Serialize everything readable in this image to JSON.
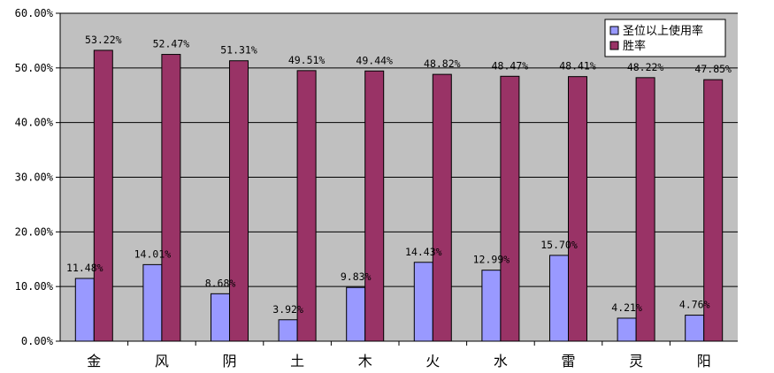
{
  "chart_data": {
    "type": "bar",
    "title": "",
    "xlabel": "",
    "ylabel": "",
    "categories": [
      "金",
      "风",
      "阴",
      "土",
      "木",
      "火",
      "水",
      "雷",
      "灵",
      "阳"
    ],
    "series": [
      {
        "name": "圣位以上使用率",
        "color": "#9999FF",
        "values": [
          11.48,
          14.01,
          8.68,
          3.92,
          9.83,
          14.43,
          12.99,
          15.7,
          4.21,
          4.76
        ],
        "labels": [
          "11.48%",
          "14.01%",
          "8.68%",
          "3.92%",
          "9.83%",
          "14.43%",
          "12.99%",
          "15.70%",
          "4.21%",
          "4.76%"
        ]
      },
      {
        "name": "胜率",
        "color": "#993366",
        "values": [
          53.22,
          52.47,
          51.31,
          49.51,
          49.44,
          48.82,
          48.47,
          48.41,
          48.22,
          47.85
        ],
        "labels": [
          "53.22%",
          "52.47%",
          "51.31%",
          "49.51%",
          "49.44%",
          "48.82%",
          "48.47%",
          "48.41%",
          "48.22%",
          "47.85%"
        ]
      }
    ],
    "ylim": [
      0,
      60
    ],
    "yticks": [
      0,
      10,
      20,
      30,
      40,
      50,
      60
    ],
    "ytick_labels": [
      "0.00%",
      "10.00%",
      "20.00%",
      "30.00%",
      "40.00%",
      "50.00%",
      "60.00%"
    ],
    "plot_background": "#C0C0C0",
    "gridlines": true,
    "legend_position": "top-right"
  }
}
